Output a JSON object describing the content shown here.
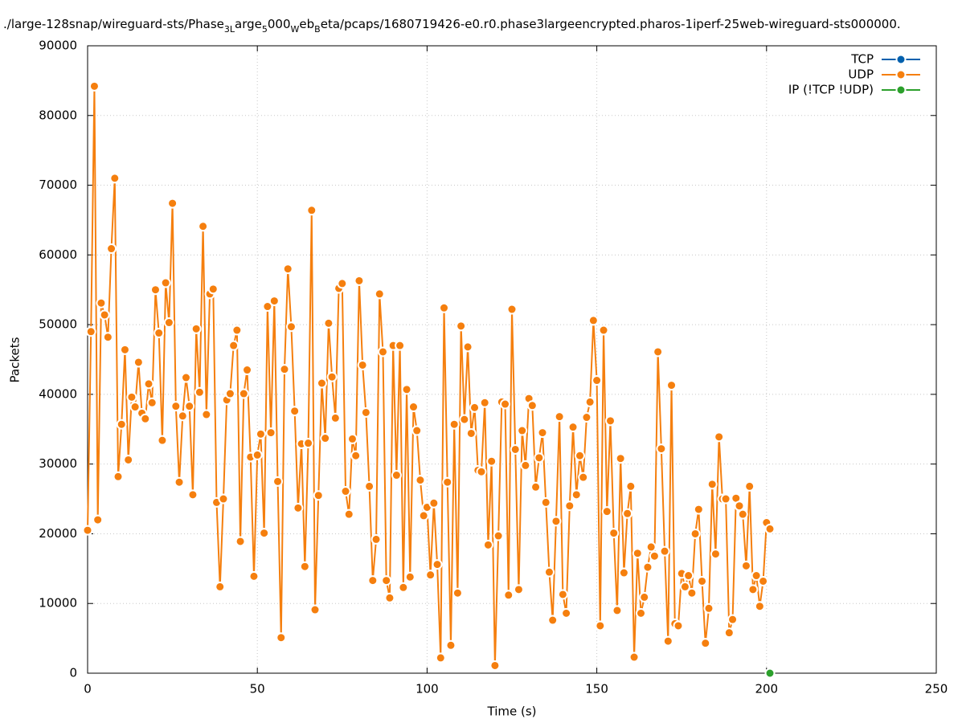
{
  "chart_data": {
    "type": "line",
    "title": [
      {
        "text": "./large-128snap/wireguard-sts/Phase",
        "sub": false
      },
      {
        "text": "3L",
        "sub": true
      },
      {
        "text": "arge",
        "sub": false
      },
      {
        "text": "5",
        "sub": true
      },
      {
        "text": "000",
        "sub": false
      },
      {
        "text": "W",
        "sub": true
      },
      {
        "text": "eb",
        "sub": false
      },
      {
        "text": "B",
        "sub": true
      },
      {
        "text": "eta/pcaps/1680719426-e0.r0.phase3largeencrypted.pharos-1iperf-25web-wireguard-sts000000.",
        "sub": false
      }
    ],
    "x_label": "Time (s)",
    "y_label": "Packets",
    "xlim": [
      0,
      250
    ],
    "xticks": [
      0,
      50,
      100,
      150,
      200,
      250
    ],
    "ylim": [
      0,
      90000
    ],
    "yticks": [
      0,
      10000,
      20000,
      30000,
      40000,
      50000,
      60000,
      70000,
      80000,
      90000
    ],
    "grid": true,
    "legend": "top-right",
    "series": [
      {
        "name": "TCP",
        "color": "#0060ad",
        "x": [],
        "values": []
      },
      {
        "name": "UDP",
        "color": "#f57f0e",
        "x": [
          0,
          1,
          2,
          3,
          4,
          5,
          6,
          7,
          8,
          9,
          10,
          11,
          12,
          13,
          14,
          15,
          16,
          17,
          18,
          19,
          20,
          21,
          22,
          23,
          24,
          25,
          26,
          27,
          28,
          29,
          30,
          31,
          32,
          33,
          34,
          35,
          36,
          37,
          38,
          39,
          40,
          41,
          42,
          43,
          44,
          45,
          46,
          47,
          48,
          49,
          50,
          51,
          52,
          53,
          54,
          55,
          56,
          57,
          58,
          59,
          60,
          61,
          62,
          63,
          64,
          65,
          66,
          67,
          68,
          69,
          70,
          71,
          72,
          73,
          74,
          75,
          76,
          77,
          78,
          79,
          80,
          81,
          82,
          83,
          84,
          85,
          86,
          87,
          88,
          89,
          90,
          91,
          92,
          93,
          94,
          95,
          96,
          97,
          98,
          99,
          100,
          101,
          102,
          103,
          104,
          105,
          106,
          107,
          108,
          109,
          110,
          111,
          112,
          113,
          114,
          115,
          116,
          117,
          118,
          119,
          120,
          121,
          122,
          123,
          124,
          125,
          126,
          127,
          128,
          129,
          130,
          131,
          132,
          133,
          134,
          135,
          136,
          137,
          138,
          139,
          140,
          141,
          142,
          143,
          144,
          145,
          146,
          147,
          148,
          149,
          150,
          151,
          152,
          153,
          154,
          155,
          156,
          157,
          158,
          159,
          160,
          161,
          162,
          163,
          164,
          165,
          166,
          167,
          168,
          169,
          170,
          171,
          172,
          173,
          174,
          175,
          176,
          177,
          178,
          179,
          180,
          181,
          182,
          183,
          184,
          185,
          186,
          187,
          188,
          189,
          190,
          191,
          192,
          193,
          194,
          195,
          196,
          197,
          198,
          199,
          200,
          201
        ],
        "values": [
          20500,
          49000,
          84200,
          22000,
          53100,
          51400,
          48200,
          60900,
          71000,
          28200,
          35700,
          46400,
          30600,
          39600,
          38200,
          44600,
          37300,
          36500,
          41500,
          38800,
          55000,
          48800,
          33400,
          56000,
          50300,
          67400,
          38300,
          27400,
          36900,
          42400,
          38300,
          25600,
          49400,
          40300,
          64100,
          37100,
          54400,
          55100,
          24500,
          12400,
          25000,
          39200,
          40100,
          47000,
          49200,
          18900,
          40100,
          43500,
          31000,
          13900,
          31300,
          34300,
          20100,
          52600,
          34500,
          53400,
          27500,
          5100,
          43600,
          58000,
          49700,
          37600,
          23700,
          32900,
          15300,
          33000,
          66400,
          9100,
          25500,
          41600,
          33700,
          50200,
          42500,
          36600,
          55200,
          55900,
          26100,
          22800,
          33600,
          31200,
          56300,
          44200,
          37400,
          26800,
          13300,
          19200,
          54400,
          46100,
          13300,
          10800,
          47000,
          28400,
          47000,
          12300,
          40700,
          13800,
          38200,
          34800,
          27700,
          22600,
          23800,
          14100,
          24400,
          15600,
          2200,
          52400,
          27400,
          4000,
          35700,
          11500,
          49800,
          36400,
          46800,
          34400,
          38100,
          29100,
          28900,
          38800,
          18400,
          30400,
          1100,
          19700,
          38900,
          38600,
          11200,
          52200,
          32100,
          12000,
          34800,
          29800,
          39400,
          38400,
          26700,
          30900,
          34500,
          24500,
          14500,
          7600,
          21800,
          36800,
          11300,
          8600,
          24000,
          35300,
          25600,
          31200,
          28100,
          36700,
          38900,
          50600,
          42000,
          6800,
          49200,
          23200,
          36200,
          20100,
          9000,
          30800,
          14400,
          22900,
          26800,
          2300,
          17200,
          8600,
          10900,
          15200,
          18100,
          16800,
          46100,
          32200,
          17500,
          4600,
          41300,
          7100,
          6800,
          14300,
          12400,
          14000,
          11500,
          20000,
          23500,
          13200,
          4300,
          9300,
          27100,
          17100,
          33900,
          25000,
          25000,
          5800,
          7700,
          25100,
          24000,
          22800,
          15400,
          26800,
          12000,
          14000,
          9600,
          13200,
          21600,
          20700
        ]
      },
      {
        "name": "IP (!TCP  !UDP)",
        "color": "#2ca02c",
        "x": [
          201
        ],
        "values": [
          0
        ]
      }
    ]
  }
}
